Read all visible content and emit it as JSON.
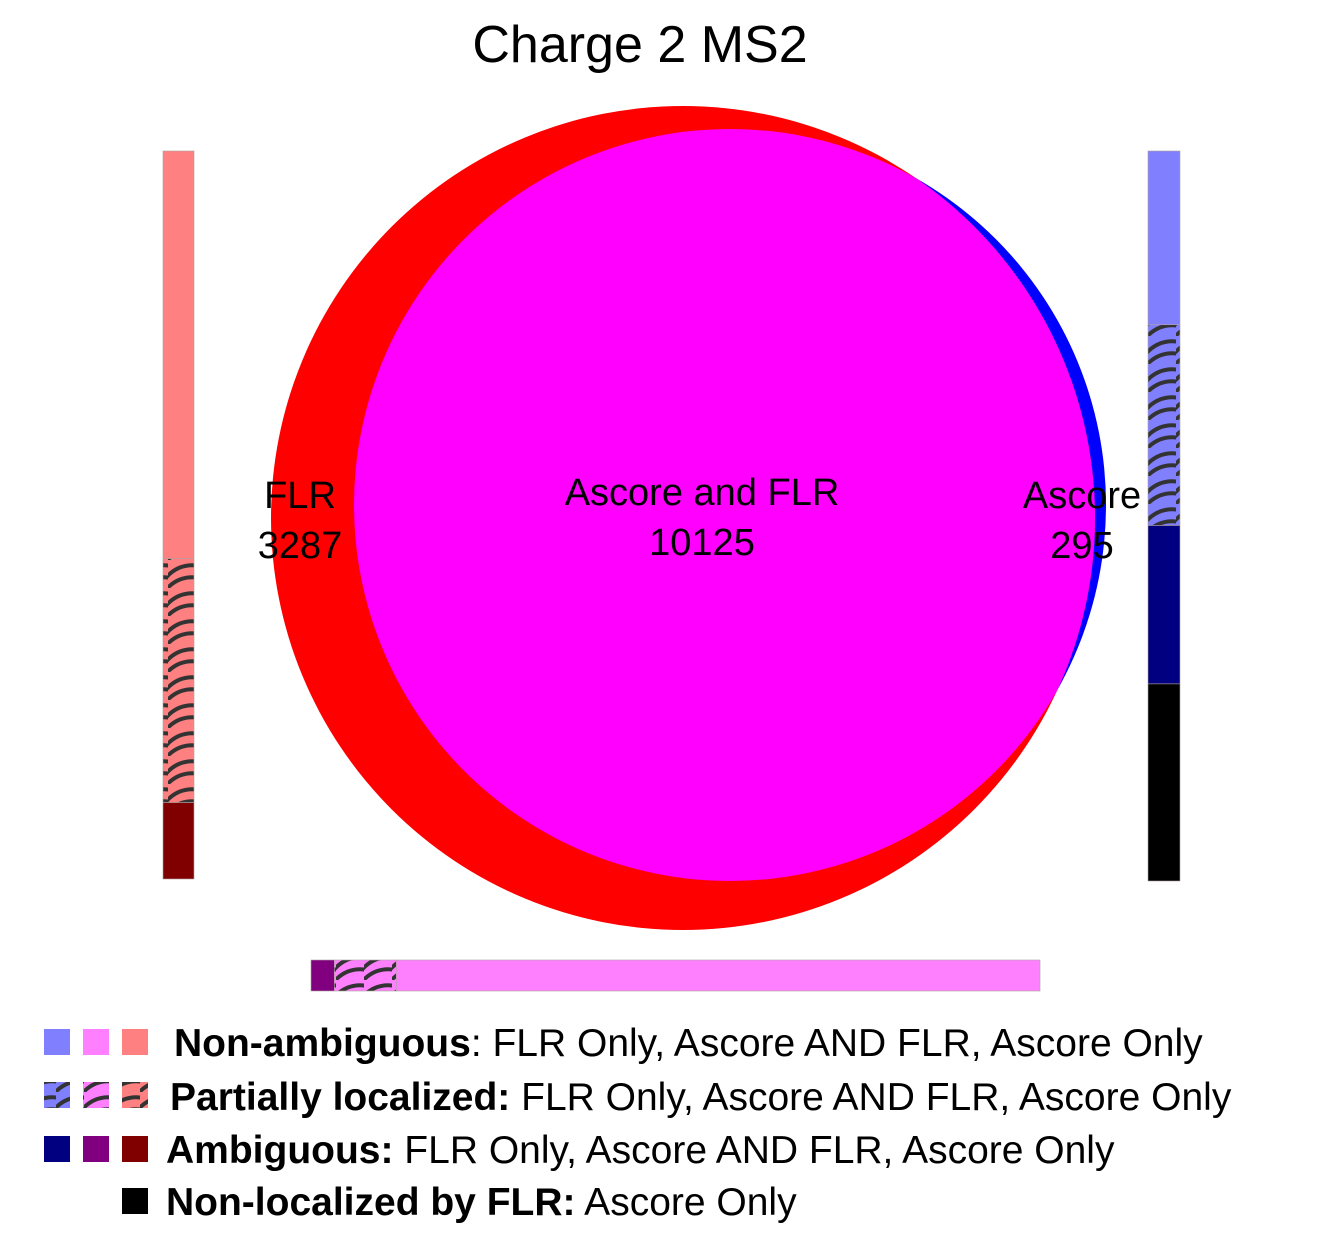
{
  "title": "Charge 2 MS2",
  "colors": {
    "flr": "#ff0000",
    "ascore": "#0000ff",
    "both": "#ff00ff",
    "flr_nonamb": "#ff8080",
    "flr_amb": "#800000",
    "both_nonamb": "#ff80ff",
    "both_amb": "#800080",
    "ascore_nonamb": "#8080ff",
    "ascore_amb": "#000080",
    "ascore_nonloc": "#000000"
  },
  "regions": {
    "flr": {
      "label": "FLR",
      "count": "3287"
    },
    "both": {
      "label": "Ascore and FLR",
      "count": "10125"
    },
    "ascore": {
      "label": "Ascore",
      "count": "295"
    }
  },
  "bars": {
    "flr": {
      "segments": [
        {
          "kind": "non-ambiguous",
          "fraction": 0.56
        },
        {
          "kind": "partially-localized",
          "fraction": 0.335
        },
        {
          "kind": "ambiguous",
          "fraction": 0.105
        }
      ]
    },
    "ascore": {
      "segments": [
        {
          "kind": "non-ambiguous",
          "fraction": 0.238
        },
        {
          "kind": "partially-localized",
          "fraction": 0.275
        },
        {
          "kind": "ambiguous",
          "fraction": 0.217
        },
        {
          "kind": "non-localized",
          "fraction": 0.27
        }
      ]
    },
    "both": {
      "segments": [
        {
          "kind": "ambiguous",
          "fraction": 0.032
        },
        {
          "kind": "partially-localized",
          "fraction": 0.085
        },
        {
          "kind": "non-ambiguous",
          "fraction": 0.883
        }
      ]
    }
  },
  "legend": {
    "nonamb_bold": "Non-ambiguous",
    "nonamb_rest": ": FLR Only, Ascore AND FLR, Ascore Only",
    "partial_bold": "Partially localized:",
    "partial_rest": " FLR Only, Ascore AND FLR, Ascore Only",
    "amb_bold": "Ambiguous:",
    "amb_rest": " FLR Only, Ascore AND FLR, Ascore Only",
    "nonloc_bold": "Non-localized by FLR:",
    "nonloc_rest": " Ascore Only"
  }
}
